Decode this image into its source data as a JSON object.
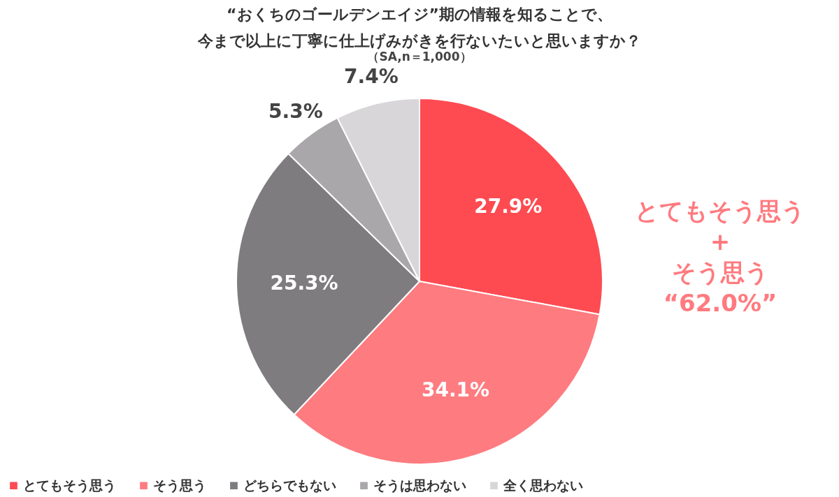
{
  "chart_data": {
    "type": "pie",
    "title": [
      "“おくちのゴールデンエイジ”期の情報を知ることで、",
      "今まで以上に丁寧に仕上げみがきを行ないたいと思いますか？"
    ],
    "subtitle": "（SA,n＝1,000）",
    "categories": [
      "とてもそう思う",
      "そう思う",
      "どちらでもない",
      "そうは思わない",
      "全く思わない"
    ],
    "values": [
      27.9,
      34.1,
      25.3,
      5.3,
      7.4
    ],
    "colors": [
      "#fe4b52",
      "#fe7b80",
      "#7f7c80",
      "#aaa7ab",
      "#d9d6da"
    ],
    "data_labels": true,
    "value_labels": [
      "27.9%",
      "34.1%",
      "25.3%",
      "5.3%",
      "7.4%"
    ],
    "legend": "bottom",
    "annotations": [
      "とてもそう思う",
      "+",
      "そう思う",
      "“62.0%”"
    ]
  }
}
